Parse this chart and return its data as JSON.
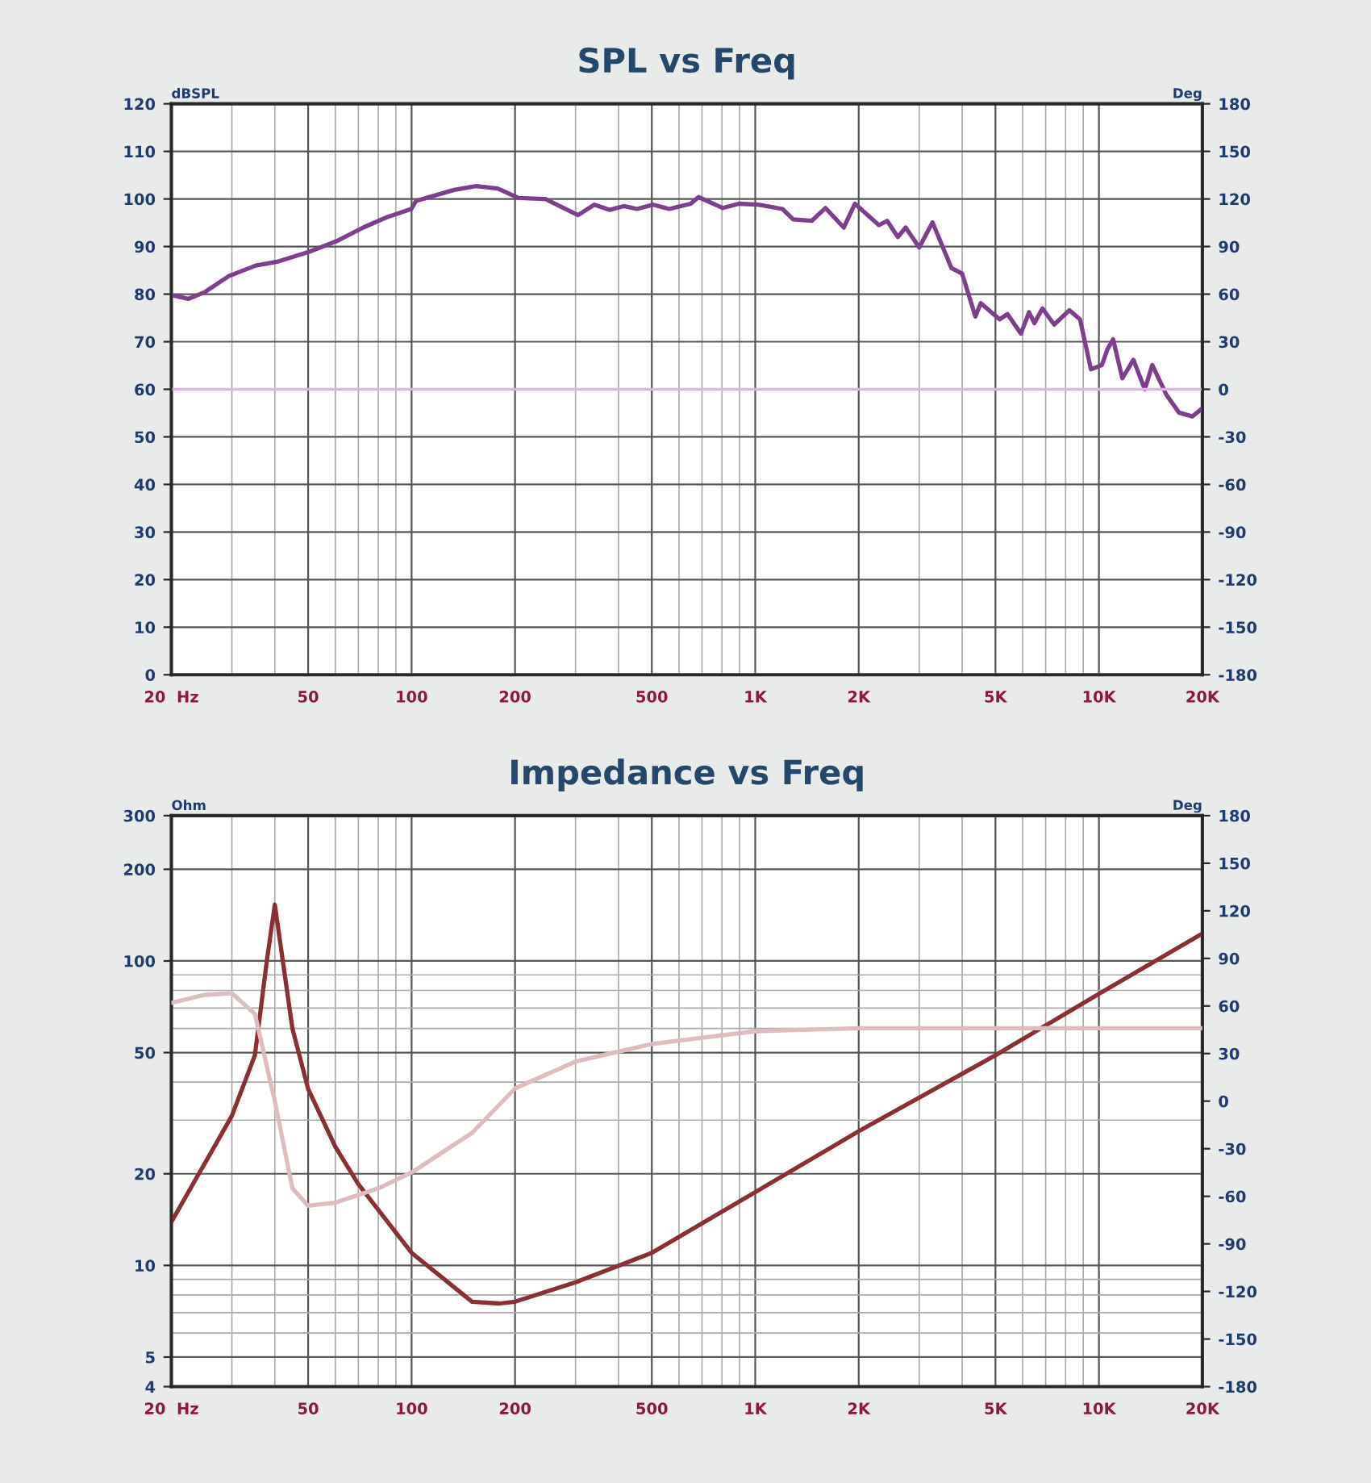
{
  "chart_data": [
    {
      "type": "line",
      "title": "SPL vs Freq",
      "ylabel": "dBSPL",
      "y2label": "Deg",
      "log": "x",
      "grid": true,
      "xlim": [
        20,
        20000
      ],
      "xticks": [
        {
          "value": 20,
          "label": "20  Hz"
        },
        50,
        100,
        200,
        500,
        {
          "value": 1000,
          "label": "1K"
        },
        {
          "value": 2000,
          "label": "2K"
        },
        {
          "value": 5000,
          "label": "5K"
        },
        {
          "value": 10000,
          "label": "10K"
        },
        {
          "value": 20000,
          "label": "20K"
        }
      ],
      "ylim": [
        0,
        120
      ],
      "yticks": [
        0,
        10,
        20,
        30,
        40,
        50,
        60,
        70,
        80,
        90,
        100,
        110,
        120
      ],
      "y2lim": [
        -180,
        180
      ],
      "y2ticks": [
        -180,
        -150,
        -120,
        -90,
        -60,
        -30,
        0,
        30,
        60,
        90,
        120,
        150,
        180
      ],
      "ref_lines": [
        {
          "axis": "y2",
          "value": 0,
          "color": "#e0b0e6"
        }
      ],
      "series": [
        {
          "color": "#7b3f8c",
          "x": [
            20,
            22.4,
            25,
            29.4,
            35.2,
            40.6,
            50.4,
            60.4,
            72.3,
            85,
            99.8,
            103,
            133,
            154,
            178,
            205,
            245,
            305,
            340,
            378,
            414,
            453,
            505,
            562,
            649,
            684,
            805,
            897,
            1020,
            1200,
            1290,
            1460,
            1600,
            1810,
            1950,
            2290,
            2420,
            2600,
            2740,
            3000,
            3280,
            3720,
            4000,
            4370,
            4530,
            5140,
            5420,
            5930,
            6260,
            6490,
            6850,
            7410,
            8200,
            8810,
            9480,
            10200,
            10600,
            11000,
            11700,
            12600,
            13600,
            14300,
            15700,
            17100,
            18700,
            20000
          ],
          "values": [
            79.8,
            79,
            80.4,
            83.8,
            86,
            86.8,
            88.9,
            91.1,
            94,
            96.2,
            97.9,
            99.6,
            101.9,
            102.7,
            102.2,
            100.2,
            100,
            96.6,
            98.8,
            97.7,
            98.5,
            97.9,
            98.8,
            97.9,
            99,
            100.4,
            98.1,
            99,
            98.8,
            97.9,
            95.7,
            95.4,
            98.1,
            94,
            99,
            94.5,
            95.4,
            92,
            94,
            89.8,
            95.1,
            85.5,
            84.3,
            75.3,
            78.1,
            74.7,
            75.8,
            71.7,
            76.2,
            73.9,
            77,
            73.6,
            76.6,
            74.7,
            64.2,
            65.1,
            68.5,
            70.5,
            62.3,
            66.2,
            60,
            65.1,
            58.9,
            55.1,
            54.3,
            56
          ]
        }
      ]
    },
    {
      "type": "line",
      "title": "Impedance vs Freq",
      "ylabel": "Ohm",
      "y2label": "Deg",
      "log": "xy",
      "grid": true,
      "xlim": [
        20,
        20000
      ],
      "xticks": [
        {
          "value": 20,
          "label": "20  Hz"
        },
        50,
        100,
        200,
        500,
        {
          "value": 1000,
          "label": "1K"
        },
        {
          "value": 2000,
          "label": "2K"
        },
        {
          "value": 5000,
          "label": "5K"
        },
        {
          "value": 10000,
          "label": "10K"
        },
        {
          "value": 20000,
          "label": "20K"
        }
      ],
      "ylim": [
        4,
        300
      ],
      "yticks": [
        4,
        5,
        10,
        20,
        50,
        100,
        200,
        300
      ],
      "y2lim": [
        -180,
        180
      ],
      "y2ticks": [
        -180,
        -150,
        -120,
        -90,
        -60,
        -30,
        0,
        30,
        60,
        90,
        120,
        150,
        180
      ],
      "series": [
        {
          "color": "#8b2f35",
          "x": [
            20,
            25,
            30,
            35,
            38,
            40,
            45,
            50,
            60,
            70,
            100,
            150,
            180,
            200,
            300,
            500,
            1000,
            2000,
            5000,
            10000,
            20000
          ],
          "values": [
            13.9,
            21.6,
            31,
            49,
            102,
            153,
            60,
            38,
            24.5,
            18.5,
            11,
            7.6,
            7.5,
            7.6,
            8.8,
            11,
            17.4,
            27.6,
            49,
            78,
            123
          ]
        },
        {
          "color": "#dcbcbc",
          "axis": "y2",
          "x": [
            20,
            25,
            30,
            35,
            40,
            45,
            50,
            60,
            80,
            100,
            150,
            200,
            300,
            500,
            1000,
            2000,
            5000,
            10000,
            20000
          ],
          "values": [
            62,
            67,
            68,
            55,
            0,
            -55,
            -66,
            -64,
            -55,
            -45,
            -20,
            8,
            25,
            36,
            44,
            46,
            46,
            46,
            46
          ]
        }
      ]
    }
  ]
}
